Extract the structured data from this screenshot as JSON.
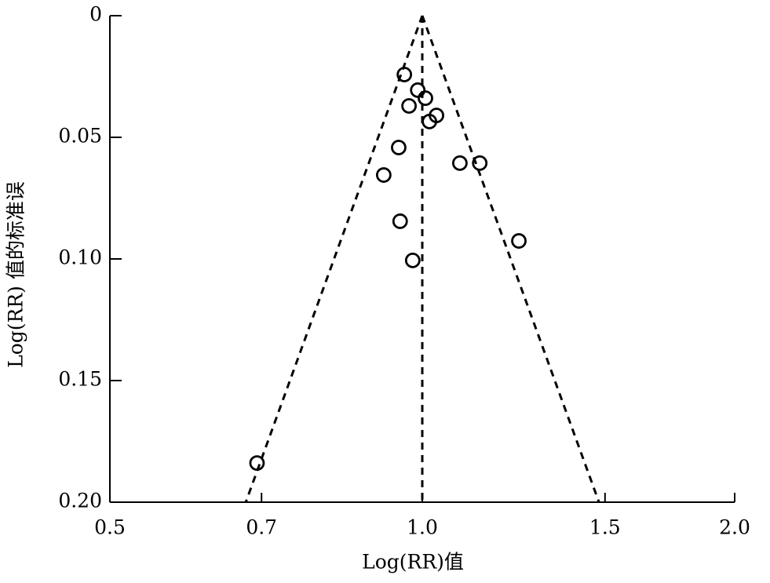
{
  "chart_data": {
    "type": "scatter",
    "xlabel": "Log(RR)值",
    "ylabel": "Log(RR) 值的标准误",
    "x_scale": "log",
    "y_inverted": true,
    "xlim": [
      0.5,
      2.0
    ],
    "xticks": [
      0.5,
      0.7,
      {
        "value": 1,
        "label": "1.0"
      },
      1.5,
      {
        "value": 2,
        "label": "2.0"
      }
    ],
    "ylim": [
      0,
      0.2
    ],
    "yticks": [
      0,
      0.05,
      {
        "value": 0.1,
        "label": "0.10"
      },
      0.15,
      {
        "value": 0.2,
        "label": "0.20"
      }
    ],
    "color": "#000000",
    "x": [
      0.961,
      0.99,
      1.007,
      0.971,
      1.032,
      1.016,
      0.949,
      1.087,
      1.136,
      0.918,
      0.952,
      1.239,
      0.979,
      0.693
    ],
    "values": [
      0.0242,
      0.0306,
      0.0339,
      0.0371,
      0.041,
      0.0435,
      0.0542,
      0.0606,
      0.0606,
      0.0655,
      0.0845,
      0.0926,
      0.1006,
      0.1839
    ],
    "reference_lines": [
      {
        "x": [
          1,
          1
        ],
        "y": [
          0,
          0.2
        ]
      },
      {
        "x": [
          1,
          0.676
        ],
        "y": [
          0,
          0.2
        ]
      },
      {
        "x": [
          1,
          1.48
        ],
        "y": [
          0,
          0.2
        ]
      }
    ]
  }
}
